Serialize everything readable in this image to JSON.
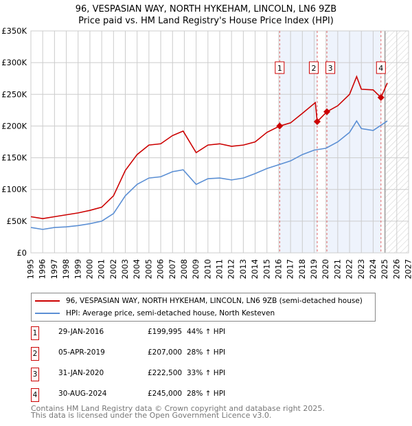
{
  "chart_data": {
    "type": "line",
    "title": "96, VESPASIAN WAY, NORTH HYKEHAM, LINCOLN, LN6 9ZB",
    "subtitle": "Price paid vs. HM Land Registry's House Price Index (HPI)",
    "xlim": [
      1995,
      2027
    ],
    "ylim": [
      0,
      350000
    ],
    "x_ticks": [
      "1995",
      "1996",
      "1997",
      "1998",
      "1999",
      "2000",
      "2001",
      "2002",
      "2003",
      "2004",
      "2005",
      "2006",
      "2007",
      "2008",
      "2009",
      "2010",
      "2011",
      "2012",
      "2013",
      "2014",
      "2015",
      "2016",
      "2017",
      "2018",
      "2019",
      "2020",
      "2021",
      "2022",
      "2023",
      "2024",
      "2025",
      "2026",
      "2027"
    ],
    "y_ticks": [
      {
        "v": 0,
        "label": "£0"
      },
      {
        "v": 50000,
        "label": "£50K"
      },
      {
        "v": 100000,
        "label": "£100K"
      },
      {
        "v": 150000,
        "label": "£150K"
      },
      {
        "v": 200000,
        "label": "£200K"
      },
      {
        "v": 250000,
        "label": "£250K"
      },
      {
        "v": 300000,
        "label": "£300K"
      },
      {
        "v": 350000,
        "label": "£350K"
      }
    ],
    "grid": true,
    "series": [
      {
        "name": "96, VESPASIAN WAY, NORTH HYKEHAM, LINCOLN, LN6 9ZB (semi-detached house)",
        "color": "#cc0000",
        "x": [
          1995,
          1996,
          1997,
          1998,
          1999,
          2000,
          2001,
          2002,
          2003,
          2004,
          2005,
          2006,
          2007,
          2007.9,
          2009,
          2010,
          2011,
          2012,
          2013,
          2014,
          2015,
          2016.08,
          2017,
          2018,
          2019.1,
          2019.26,
          2020.08,
          2021,
          2022,
          2022.6,
          2023,
          2024,
          2024.66,
          2025.2
        ],
        "y": [
          57000,
          54000,
          57000,
          60000,
          63000,
          67000,
          72000,
          90000,
          130000,
          155000,
          170000,
          172000,
          185000,
          192000,
          158000,
          170000,
          172000,
          168000,
          170000,
          175000,
          190000,
          199995,
          205000,
          220000,
          237000,
          207000,
          222500,
          232000,
          250000,
          278000,
          258000,
          257000,
          245000,
          268000
        ]
      },
      {
        "name": "HPI: Average price, semi-detached house, North Kesteven",
        "color": "#5b8fd4",
        "x": [
          1995,
          1996,
          1997,
          1998,
          1999,
          2000,
          2001,
          2002,
          2003,
          2004,
          2005,
          2006,
          2007,
          2007.9,
          2009,
          2010,
          2011,
          2012,
          2013,
          2014,
          2015,
          2016,
          2017,
          2018,
          2019,
          2020,
          2021,
          2022,
          2022.6,
          2023,
          2024,
          2025.2
        ],
        "y": [
          40000,
          37000,
          40000,
          41000,
          43000,
          46000,
          50000,
          62000,
          90000,
          108000,
          118000,
          120000,
          128000,
          131000,
          108000,
          117000,
          118000,
          115000,
          118000,
          125000,
          133000,
          139000,
          145000,
          155000,
          162000,
          165000,
          175000,
          190000,
          208000,
          196000,
          193000,
          208000
        ]
      }
    ],
    "sales": [
      {
        "id": "1",
        "x": 2016.08,
        "date": "29-JAN-2016",
        "price": 199995,
        "price_label": "£199,995",
        "hpi": "44% ↑ HPI"
      },
      {
        "id": "2",
        "x": 2019.26,
        "date": "05-APR-2019",
        "price": 207000,
        "price_label": "£207,000",
        "hpi": "28% ↑ HPI"
      },
      {
        "id": "3",
        "x": 2020.08,
        "date": "31-JAN-2020",
        "price": 222500,
        "price_label": "£222,500",
        "hpi": "33% ↑ HPI"
      },
      {
        "id": "4",
        "x": 2024.66,
        "date": "30-AUG-2024",
        "price": 245000,
        "price_label": "£245,000",
        "hpi": "28% ↑ HPI"
      }
    ],
    "forecast_start": 2025.0,
    "legend_position": "bottom"
  },
  "footer": {
    "line1": "Contains HM Land Registry data © Crown copyright and database right 2025.",
    "line2": "This data is licensed under the Open Government Licence v3.0."
  }
}
